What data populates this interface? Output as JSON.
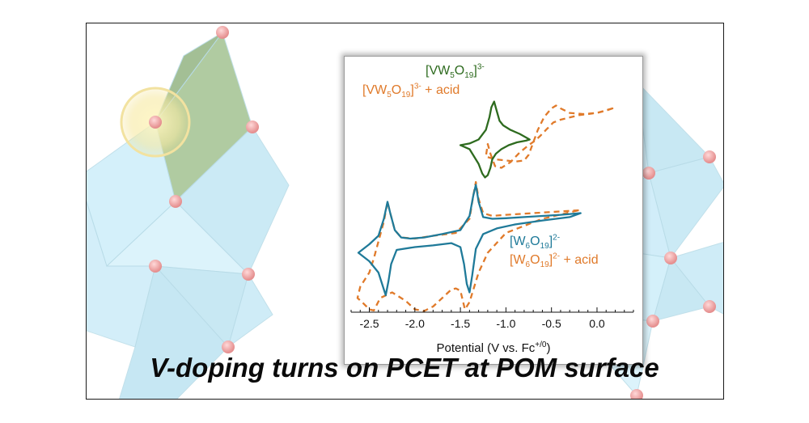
{
  "caption": "V-doping turns on PCET at POM surface",
  "chart_data": {
    "type": "line",
    "xlabel": {
      "main": "Potential (V vs. Fc",
      "sup": "+/0",
      "close": ")"
    },
    "xlim": [
      -2.7,
      0.4
    ],
    "x_ticks": [
      -2.5,
      -2.0,
      -1.5,
      -1.0,
      -0.5,
      0.0
    ],
    "x_tick_labels": [
      "-2.5",
      "-2.0",
      "-1.5",
      "-1.0",
      "-0.5",
      "0.0"
    ],
    "legends": [
      {
        "group": "VW5O19",
        "entries": [
          {
            "id": "vw",
            "color": "#2e6b1f",
            "dash": "solid",
            "pre": "[VW",
            "s1": "5",
            "mid": "O",
            "s2": "19",
            "close": "]",
            "charge": "3-",
            "suffix": ""
          },
          {
            "id": "vw_acid",
            "color": "#e07a2a",
            "dash": "dashed",
            "pre": "[VW",
            "s1": "5",
            "mid": "O",
            "s2": "19",
            "close": "]",
            "charge": "3-",
            "suffix": " + acid"
          }
        ]
      },
      {
        "group": "W6O19",
        "entries": [
          {
            "id": "w6",
            "color": "#1f7a99",
            "dash": "solid",
            "pre": "[W",
            "s1": "6",
            "mid": "O",
            "s2": "19",
            "close": "]",
            "charge": "2-",
            "suffix": ""
          },
          {
            "id": "w6_acid",
            "color": "#e07a2a",
            "dash": "dashed",
            "pre": "[W",
            "s1": "6",
            "mid": "O",
            "s2": "19",
            "close": "]",
            "charge": "2-",
            "suffix": " + acid"
          }
        ]
      }
    ],
    "series": [
      {
        "id": "vw",
        "color": "#2e6b1f",
        "dash": "solid",
        "unit": "relative current",
        "x": [
          -0.74,
          -0.85,
          -0.95,
          -1.03,
          -1.07,
          -1.1,
          -1.13,
          -1.16,
          -1.18,
          -1.22,
          -1.3,
          -1.4,
          -1.5,
          -1.4,
          -1.3,
          -1.26,
          -1.23,
          -1.2,
          -1.17,
          -1.15,
          -1.11,
          -1.05,
          -0.97,
          -0.88,
          -0.78,
          -0.74
        ],
        "y": [
          3.05,
          3.15,
          3.22,
          3.3,
          3.38,
          3.55,
          3.72,
          3.62,
          3.45,
          3.22,
          3.05,
          2.98,
          2.95,
          2.88,
          2.62,
          2.45,
          2.38,
          2.42,
          2.55,
          2.7,
          2.8,
          2.88,
          2.95,
          3.0,
          3.03,
          3.05
        ]
      },
      {
        "id": "vw_acid",
        "color": "#e07a2a",
        "dash": "dashed",
        "unit": "relative current",
        "x": [
          0.17,
          0.1,
          0.0,
          -0.2,
          -0.4,
          -0.48,
          -0.56,
          -0.62,
          -0.68,
          -0.75,
          -0.85,
          -0.95,
          -1.05,
          -1.12,
          -1.17,
          -1.2,
          -1.22,
          -1.12,
          -1.0,
          -0.9,
          -0.8,
          -0.75,
          -0.7,
          -0.65,
          -0.58,
          -0.5,
          -0.45,
          -0.4,
          -0.3,
          -0.15,
          0.0,
          0.17
        ],
        "y": [
          3.6,
          3.56,
          3.52,
          3.48,
          3.4,
          3.35,
          3.22,
          3.12,
          3.03,
          2.95,
          2.82,
          2.65,
          2.55,
          2.58,
          2.8,
          2.97,
          2.75,
          2.7,
          2.68,
          2.66,
          2.68,
          2.78,
          3.0,
          3.22,
          3.45,
          3.6,
          3.65,
          3.6,
          3.52,
          3.5,
          3.52,
          3.6
        ]
      },
      {
        "id": "w6",
        "color": "#1f7a99",
        "dash": "solid",
        "unit": "relative current",
        "x": [
          -0.18,
          -0.4,
          -0.6,
          -0.8,
          -1.0,
          -1.15,
          -1.25,
          -1.3,
          -1.33,
          -1.36,
          -1.4,
          -1.5,
          -1.7,
          -1.9,
          -2.05,
          -2.15,
          -2.22,
          -2.27,
          -2.3,
          -2.34,
          -2.4,
          -2.5,
          -2.62,
          -2.5,
          -2.4,
          -2.35,
          -2.32,
          -2.29,
          -2.26,
          -2.2,
          -2.0,
          -1.8,
          -1.6,
          -1.5,
          -1.46,
          -1.43,
          -1.4,
          -1.37,
          -1.33,
          -1.25,
          -1.1,
          -0.9,
          -0.6,
          -0.3,
          -0.18
        ],
        "y": [
          1.75,
          1.72,
          1.7,
          1.68,
          1.66,
          1.65,
          1.68,
          1.95,
          2.25,
          2.05,
          1.7,
          1.45,
          1.38,
          1.32,
          1.3,
          1.32,
          1.45,
          1.75,
          1.95,
          1.65,
          1.35,
          1.2,
          1.05,
          0.9,
          0.7,
          0.45,
          0.3,
          0.55,
          0.85,
          1.1,
          1.15,
          1.18,
          1.22,
          1.15,
          0.85,
          0.5,
          0.35,
          0.65,
          1.12,
          1.38,
          1.48,
          1.55,
          1.62,
          1.68,
          1.75
        ]
      },
      {
        "id": "w6_acid",
        "color": "#e07a2a",
        "dash": "dashed",
        "unit": "relative current",
        "x": [
          -0.2,
          -0.4,
          -0.6,
          -0.8,
          -1.0,
          -1.15,
          -1.25,
          -1.3,
          -1.33,
          -1.36,
          -1.4,
          -1.55,
          -1.8,
          -2.0,
          -2.15,
          -2.22,
          -2.27,
          -2.3,
          -2.34,
          -2.4,
          -2.45,
          -2.5,
          -2.6,
          -2.63,
          -2.58,
          -2.5,
          -2.45,
          -2.38,
          -2.25,
          -2.1,
          -2.0,
          -1.9,
          -1.8,
          -1.7,
          -1.6,
          -1.55,
          -1.5,
          -1.45,
          -1.4,
          -1.3,
          -1.2,
          -1.0,
          -0.6,
          -0.2
        ],
        "y": [
          1.8,
          1.78,
          1.76,
          1.74,
          1.72,
          1.7,
          1.75,
          2.0,
          2.3,
          2.05,
          1.65,
          1.4,
          1.35,
          1.3,
          1.32,
          1.45,
          1.75,
          1.95,
          1.6,
          1.25,
          0.95,
          0.7,
          0.45,
          0.25,
          0.18,
          0.05,
          0.03,
          0.25,
          0.35,
          0.2,
          0.05,
          0.02,
          0.1,
          0.25,
          0.4,
          0.42,
          0.38,
          0.05,
          0.18,
          0.7,
          1.05,
          1.4,
          1.65,
          1.8
        ]
      }
    ]
  },
  "colors": {
    "green": "#2e6b1f",
    "orange": "#e07a2a",
    "blue": "#1f7a99",
    "octahedron_face": "#cdeefa",
    "octahedron_edge": "#a9d2e0",
    "oxygen_atom": "#f0a8a8",
    "vanadium_octahedron": "#a3c391",
    "highlight_ring": "#f3e08a"
  }
}
